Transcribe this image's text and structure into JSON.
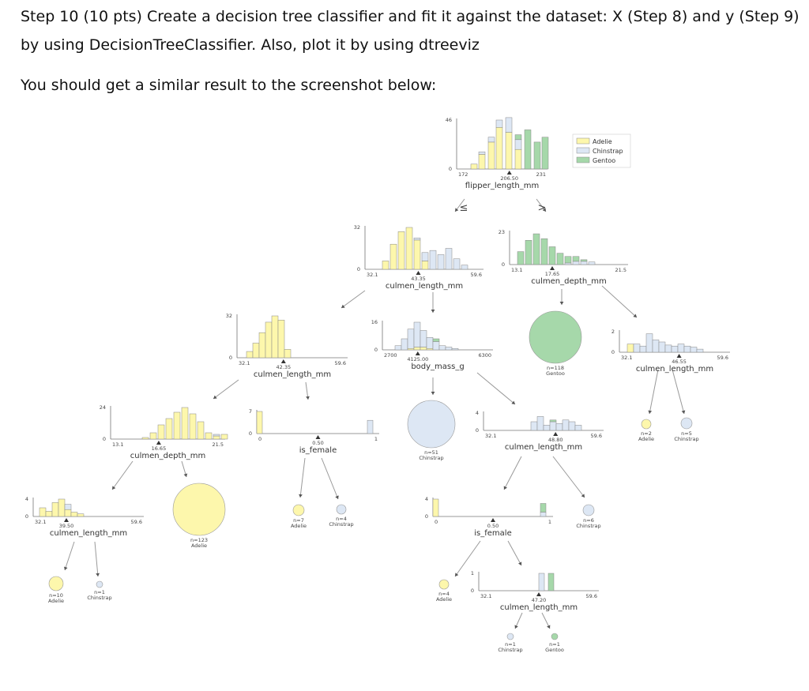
{
  "header": {
    "line1": "Step 10 (10 pts) Create a decision tree classifier and fit it against the dataset: X (Step 8) and y (Step 9)",
    "line2": "by using DecisionTreeClassifier. Also, plot it by using dtreeviz",
    "line3": "You should get a similar result to the screenshot below:"
  },
  "colors": {
    "Adelie": "#fdf7ac",
    "Chinstrap": "#dde7f4",
    "Gentoo": "#a6d8aa",
    "edge": "#999999",
    "axis": "#777777"
  },
  "legend": {
    "items": [
      "Adelie",
      "Chinstrap",
      "Gentoo"
    ]
  },
  "tree": {
    "inequality": {
      "le": "≤",
      "gt": ">"
    },
    "split_nodes": [
      {
        "feature": "flipper_length_mm",
        "threshold": "206.50",
        "min": "172",
        "max": "231",
        "ymax": "46"
      },
      {
        "feature": "culmen_length_mm",
        "threshold": "43.35",
        "min": "32.1",
        "max": "59.6",
        "ymax": "32"
      },
      {
        "feature": "culmen_depth_mm",
        "threshold": "17.65",
        "min": "13.1",
        "max": "21.5",
        "ymax": "23"
      },
      {
        "feature": "culmen_length_mm",
        "threshold": "42.35",
        "min": "32.1",
        "max": "59.6",
        "ymax": "32"
      },
      {
        "feature": "body_mass_g",
        "threshold": "4125.00",
        "min": "2700",
        "max": "6300",
        "ymax": "16"
      },
      {
        "feature": "culmen_length_mm",
        "threshold": "46.55",
        "min": "32.1",
        "max": "59.6",
        "ymax": "2"
      },
      {
        "feature": "culmen_depth_mm",
        "threshold": "16.65",
        "min": "13.1",
        "max": "21.5",
        "ymax": "24"
      },
      {
        "feature": "is_female",
        "threshold": "0.50",
        "min": "0",
        "max": "1",
        "ymax": "7"
      },
      {
        "feature": "culmen_length_mm",
        "threshold": "48.80",
        "min": "32.1",
        "max": "59.6",
        "ymax": "4"
      },
      {
        "feature": "culmen_length_mm",
        "threshold": "39.50",
        "min": "32.1",
        "max": "59.6",
        "ymax": "4"
      },
      {
        "feature": "is_female",
        "threshold": "0.50",
        "min": "0",
        "max": "1",
        "ymax": "4"
      },
      {
        "feature": "culmen_length_mm",
        "threshold": "47.20",
        "min": "32.1",
        "max": "59.6",
        "ymax": "1"
      }
    ],
    "leaves": [
      {
        "n": "n=118",
        "cls": "Gentoo"
      },
      {
        "n": "n=51",
        "cls": "Chinstrap"
      },
      {
        "n": "n=2",
        "cls": "Adelie"
      },
      {
        "n": "n=5",
        "cls": "Chinstrap"
      },
      {
        "n": "n=123",
        "cls": "Adelie"
      },
      {
        "n": "n=7",
        "cls": "Adelie"
      },
      {
        "n": "n=4",
        "cls": "Chinstrap"
      },
      {
        "n": "n=6",
        "cls": "Chinstrap"
      },
      {
        "n": "n=10",
        "cls": "Adelie"
      },
      {
        "n": "n=1",
        "cls": "Chinstrap"
      },
      {
        "n": "n=4",
        "cls": "Adelie"
      },
      {
        "n": "n=1",
        "cls": "Chinstrap"
      },
      {
        "n": "n=1",
        "cls": "Gentoo"
      }
    ]
  }
}
